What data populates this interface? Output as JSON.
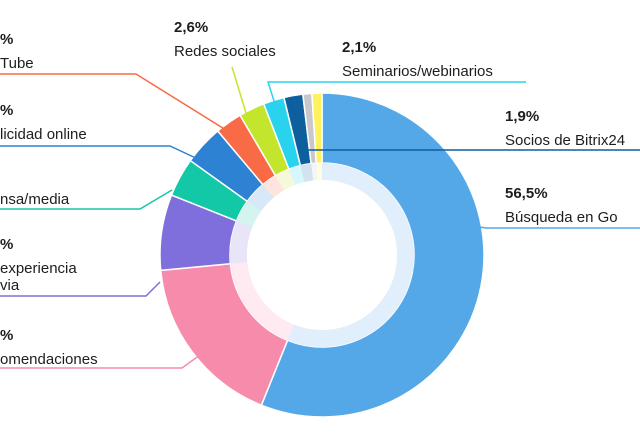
{
  "chart_data": {
    "type": "pie",
    "title": "",
    "series": [
      {
        "label": "Búsqueda en Go",
        "value_text": "56,5%",
        "value": 56.5,
        "color": "#54a8e8"
      },
      {
        "label": "omendaciones",
        "value_text": "%",
        "value": 17.5,
        "color": "#f78bab"
      },
      {
        "label": "experiencia\nvia",
        "value_text": "%",
        "value": 7.6,
        "color": "#7f6fdc"
      },
      {
        "label": "nsa/media",
        "value_text": "",
        "value": 3.9,
        "color": "#12c8a6"
      },
      {
        "label": "licidad online",
        "value_text": "%",
        "value": 4.0,
        "color": "#2e82d3"
      },
      {
        "label": "Tube",
        "value_text": "%",
        "value": 2.7,
        "color": "#f96a46"
      },
      {
        "label": "Redes sociales",
        "value_text": "2,6%",
        "value": 2.6,
        "color": "#c3e62d"
      },
      {
        "label": "Seminarios/webinarios",
        "value_text": "2,1%",
        "value": 2.1,
        "color": "#29d3ee"
      },
      {
        "label": "Socios de Bitrix24",
        "value_text": "1,9%",
        "value": 1.9,
        "color": "#0d5f9e"
      },
      {
        "label": "",
        "value_text": "",
        "value": 0.9,
        "color": "#c7c7cc"
      },
      {
        "label": "",
        "value_text": "",
        "value": 1.0,
        "color": "#fff25c"
      }
    ]
  }
}
